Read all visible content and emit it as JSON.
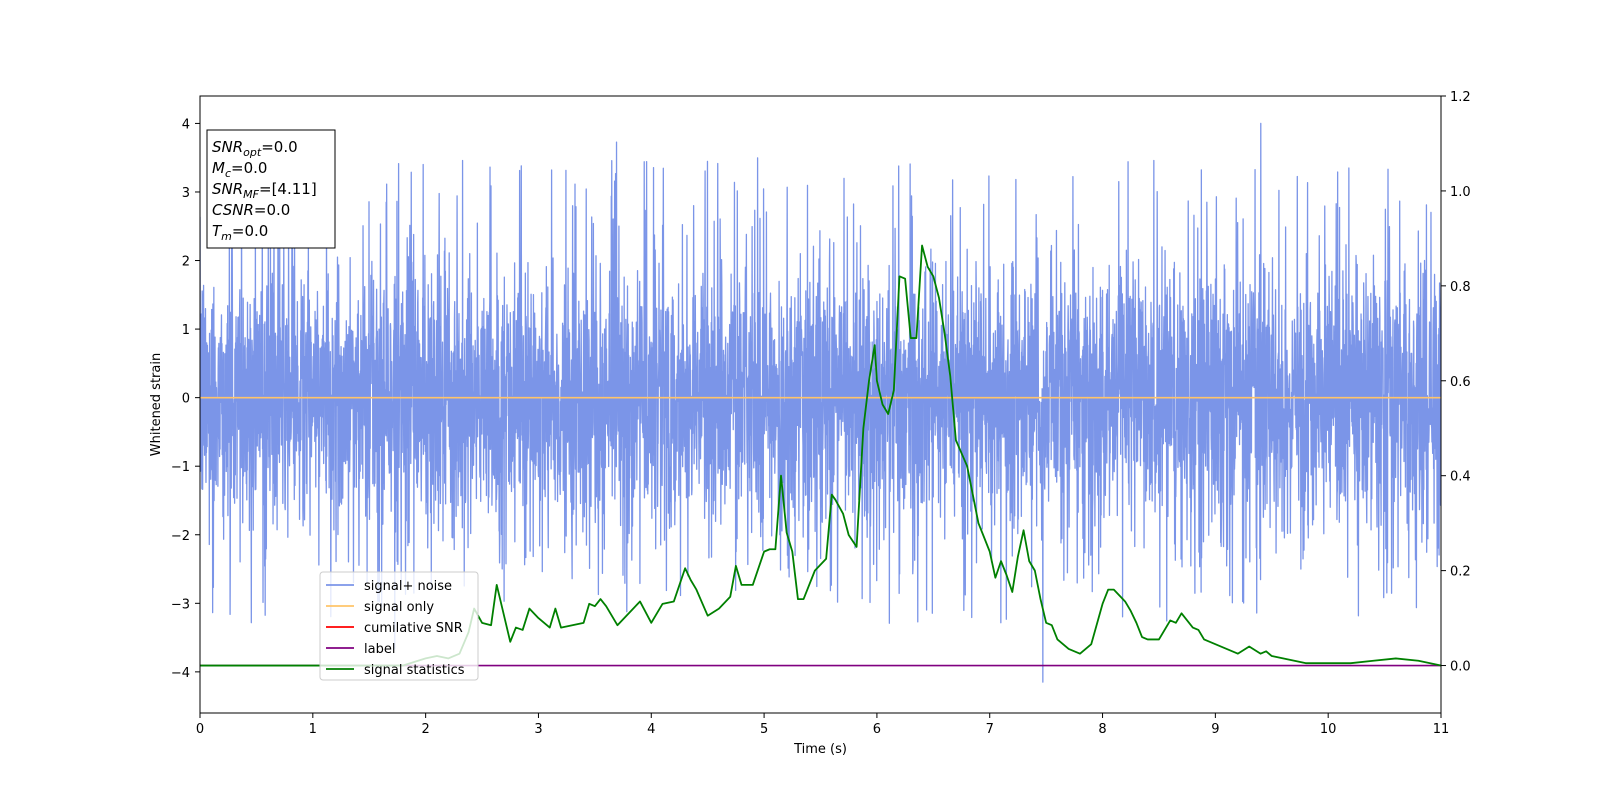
{
  "chart_data": {
    "type": "line",
    "xlabel": "Time (s)",
    "ylabel": "Whitened strain",
    "xlim": [
      0,
      11
    ],
    "ylim_left": [
      -4.6,
      4.4
    ],
    "ylim_right": [
      -0.1,
      1.2
    ],
    "xticks": [
      "0",
      "1",
      "2",
      "3",
      "4",
      "5",
      "6",
      "7",
      "8",
      "9",
      "10",
      "11"
    ],
    "yticks_left": [
      "−4",
      "−3",
      "−2",
      "−1",
      "0",
      "1",
      "2",
      "3",
      "4"
    ],
    "yticks_right": [
      "0.0",
      "0.2",
      "0.4",
      "0.6",
      "0.8",
      "1.0",
      "1.2"
    ],
    "annotation": {
      "lines": [
        {
          "sym": "SNR",
          "sub": "opt",
          "val": "=0.0"
        },
        {
          "sym": "M",
          "sub": "c",
          "val": "=0.0"
        },
        {
          "sym": "SNR",
          "sub": "MF",
          "val": "=[4.11]"
        },
        {
          "sym": "CSNR",
          "sub": "",
          "val": "=0.0"
        },
        {
          "sym": "T",
          "sub": "m",
          "val": "=0.0"
        }
      ]
    },
    "legend": {
      "placement": "lower-left",
      "entries": [
        {
          "label": "signal+ noise",
          "color": "#7b95e8"
        },
        {
          "label": "signal only",
          "color": "#ffc46a"
        },
        {
          "label": "cumilative SNR",
          "color": "#ff0000"
        },
        {
          "label": "label",
          "color": "#800080"
        },
        {
          "label": "signal statistics",
          "color": "#008000"
        }
      ]
    },
    "series": [
      {
        "name": "signal+ noise",
        "axis": "left",
        "color": "#7b95e8",
        "kind": "noise",
        "typical_range": [
          -2,
          2.5
        ],
        "peak_max": 4.0,
        "peak_min": -4.15
      },
      {
        "name": "signal only",
        "axis": "left",
        "color": "#ffc46a",
        "x": [
          0,
          11
        ],
        "y": [
          0,
          0
        ]
      },
      {
        "name": "label",
        "axis": "right",
        "color": "#800080",
        "x": [
          0,
          11
        ],
        "y": [
          0,
          0
        ]
      },
      {
        "name": "signal statistics",
        "axis": "right",
        "color": "#008000",
        "x": [
          0,
          0.5,
          1.0,
          1.5,
          1.8,
          2.0,
          2.1,
          2.2,
          2.3,
          2.38,
          2.43,
          2.5,
          2.58,
          2.63,
          2.7,
          2.75,
          2.8,
          2.86,
          2.92,
          3.0,
          3.1,
          3.15,
          3.2,
          3.3,
          3.4,
          3.45,
          3.5,
          3.55,
          3.6,
          3.7,
          3.8,
          3.9,
          4.0,
          4.1,
          4.2,
          4.3,
          4.35,
          4.4,
          4.5,
          4.6,
          4.7,
          4.75,
          4.8,
          4.85,
          4.9,
          5.0,
          5.05,
          5.1,
          5.15,
          5.2,
          5.25,
          5.3,
          5.35,
          5.45,
          5.55,
          5.6,
          5.63,
          5.7,
          5.75,
          5.82,
          5.88,
          5.93,
          5.98,
          6.0,
          6.05,
          6.1,
          6.15,
          6.2,
          6.25,
          6.3,
          6.35,
          6.4,
          6.45,
          6.5,
          6.55,
          6.6,
          6.65,
          6.7,
          6.8,
          6.9,
          6.95,
          7.0,
          7.05,
          7.1,
          7.15,
          7.2,
          7.25,
          7.3,
          7.35,
          7.4,
          7.45,
          7.5,
          7.55,
          7.6,
          7.7,
          7.8,
          7.9,
          8.0,
          8.05,
          8.1,
          8.2,
          8.25,
          8.3,
          8.35,
          8.4,
          8.5,
          8.6,
          8.65,
          8.7,
          8.8,
          8.85,
          8.9,
          9.0,
          9.1,
          9.2,
          9.3,
          9.4,
          9.45,
          9.5,
          9.6,
          9.7,
          9.8,
          10.0,
          10.2,
          10.4,
          10.6,
          10.8,
          11.0
        ],
        "y": [
          0.0,
          0.0,
          0.0,
          0.0,
          0.0,
          0.015,
          0.02,
          0.015,
          0.025,
          0.07,
          0.12,
          0.09,
          0.085,
          0.17,
          0.1,
          0.05,
          0.08,
          0.075,
          0.12,
          0.1,
          0.08,
          0.12,
          0.08,
          0.085,
          0.09,
          0.13,
          0.125,
          0.14,
          0.125,
          0.085,
          0.11,
          0.135,
          0.09,
          0.13,
          0.135,
          0.205,
          0.18,
          0.16,
          0.105,
          0.12,
          0.145,
          0.21,
          0.17,
          0.17,
          0.17,
          0.24,
          0.245,
          0.245,
          0.4,
          0.28,
          0.24,
          0.14,
          0.14,
          0.2,
          0.225,
          0.36,
          0.35,
          0.32,
          0.275,
          0.25,
          0.5,
          0.6,
          0.675,
          0.6,
          0.55,
          0.53,
          0.58,
          0.82,
          0.815,
          0.69,
          0.69,
          0.885,
          0.84,
          0.82,
          0.775,
          0.7,
          0.61,
          0.475,
          0.42,
          0.3,
          0.27,
          0.24,
          0.185,
          0.22,
          0.19,
          0.155,
          0.23,
          0.285,
          0.22,
          0.2,
          0.14,
          0.09,
          0.085,
          0.055,
          0.035,
          0.025,
          0.045,
          0.13,
          0.16,
          0.16,
          0.135,
          0.115,
          0.09,
          0.06,
          0.055,
          0.055,
          0.095,
          0.09,
          0.11,
          0.08,
          0.075,
          0.055,
          0.045,
          0.035,
          0.025,
          0.04,
          0.025,
          0.03,
          0.02,
          0.015,
          0.01,
          0.005,
          0.005,
          0.005,
          0.01,
          0.015,
          0.01,
          0.0
        ]
      }
    ]
  }
}
